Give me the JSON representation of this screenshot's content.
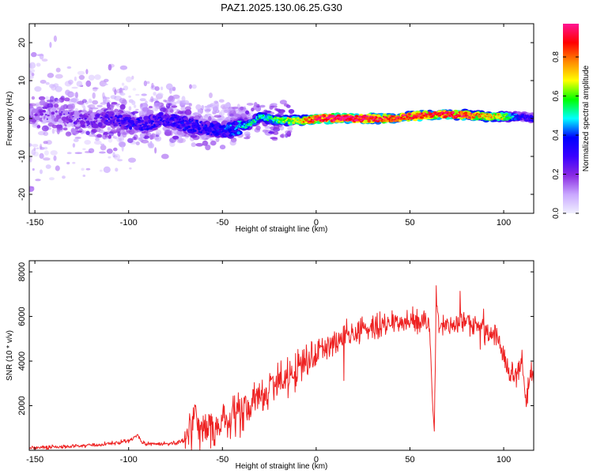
{
  "title": "PAZ1.2025.130.06.25.G30",
  "colormap_stops": [
    "#f0f0ff",
    "#c9a7ff",
    "#8a2be2",
    "#3a00ff",
    "#0000ff",
    "#00ffff",
    "#00ff00",
    "#ffff00",
    "#ff8800",
    "#ff0000",
    "#ff1493"
  ],
  "line_color": "#ee2222",
  "chart_data": [
    {
      "type": "heatmap",
      "title": "",
      "xlabel": "Height of straight line (km)",
      "ylabel": "Frequency (Hz)",
      "xlim": [
        -153,
        116
      ],
      "ylim": [
        -25,
        25
      ],
      "xticks": [
        -150,
        -100,
        -50,
        0,
        50,
        100
      ],
      "yticks": [
        -20,
        -10,
        0,
        10,
        20
      ],
      "colorbar": {
        "label": "Normalized spectral amplitude",
        "range": [
          0,
          0.97
        ],
        "ticks": [
          0.0,
          0.2,
          0.4,
          0.6,
          0.8
        ]
      },
      "grid": false,
      "ridge": {
        "x": [
          -153,
          -140,
          -130,
          -120,
          -110,
          -100,
          -90,
          -80,
          -70,
          -60,
          -55,
          -50,
          -45,
          -40,
          -35,
          -30,
          -25,
          -20,
          -15,
          -10,
          -5,
          0,
          5,
          10,
          20,
          30,
          40,
          50,
          60,
          70,
          80,
          90,
          100,
          105,
          110,
          116
        ],
        "freq": [
          1,
          1,
          0,
          -0.5,
          0,
          -1,
          -1.5,
          0,
          -1.5,
          -2.5,
          -3,
          -3,
          -3,
          -2,
          -1.5,
          0.5,
          0,
          -0.5,
          -0.5,
          -0.5,
          -0.5,
          0,
          0,
          0,
          0,
          0,
          0,
          0.5,
          1,
          1,
          1,
          0.5,
          0.5,
          0.5,
          0.5,
          0
        ],
        "amplitude": [
          0.15,
          0.15,
          0.18,
          0.2,
          0.25,
          0.3,
          0.3,
          0.28,
          0.32,
          0.3,
          0.33,
          0.35,
          0.38,
          0.45,
          0.5,
          0.45,
          0.5,
          0.55,
          0.6,
          0.6,
          0.75,
          0.85,
          0.9,
          0.95,
          0.9,
          0.85,
          0.8,
          0.8,
          0.8,
          0.85,
          0.8,
          0.7,
          0.6,
          0.4,
          0.3,
          0.3
        ]
      }
    },
    {
      "type": "line",
      "title": "",
      "xlabel": "Height of straight line (km)",
      "ylabel": "SNR (10 * v/v)",
      "xlim": [
        -153,
        116
      ],
      "ylim": [
        0,
        8500
      ],
      "xticks": [
        -150,
        -100,
        -50,
        0,
        50,
        100
      ],
      "yticks": [
        2000,
        4000,
        6000,
        8000
      ],
      "grid": false,
      "series": [
        {
          "x": [
            -153,
            -140,
            -130,
            -120,
            -110,
            -100,
            -95,
            -93,
            -90,
            -80,
            -75,
            -70,
            -67,
            -64,
            -62,
            -60,
            -57,
            -55,
            -50,
            -45,
            -40,
            -35,
            -30,
            -25,
            -20,
            -15,
            -10,
            -5,
            0,
            5,
            10,
            15,
            20,
            25,
            30,
            35,
            40,
            45,
            50,
            55,
            60,
            63,
            64,
            65,
            67,
            70,
            75,
            80,
            85,
            90,
            95,
            97,
            100,
            103,
            105,
            107,
            108,
            110,
            112,
            114,
            116
          ],
          "y": [
            100,
            150,
            180,
            220,
            300,
            400,
            700,
            350,
            300,
            300,
            350,
            450,
            1000,
            1800,
            700,
            1100,
            900,
            800,
            1200,
            1400,
            1700,
            2100,
            2400,
            2800,
            3100,
            3400,
            3700,
            4100,
            4300,
            4600,
            4900,
            5000,
            5200,
            5400,
            5500,
            5600,
            5700,
            5800,
            5800,
            5800,
            5700,
            800,
            7000,
            5700,
            5500,
            5600,
            5700,
            5700,
            5600,
            5300,
            5200,
            5100,
            4200,
            3600,
            3300,
            3100,
            3600,
            4000,
            2000,
            3500,
            3400
          ]
        }
      ]
    }
  ]
}
